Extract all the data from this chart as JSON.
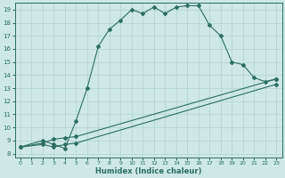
{
  "xlabel": "Humidex (Indice chaleur)",
  "xlim": [
    0,
    23
  ],
  "ylim": [
    8,
    19
  ],
  "xticks": [
    0,
    1,
    2,
    3,
    4,
    5,
    6,
    7,
    8,
    9,
    10,
    11,
    12,
    13,
    14,
    15,
    16,
    17,
    18,
    19,
    20,
    21,
    22,
    23
  ],
  "yticks": [
    8,
    9,
    10,
    11,
    12,
    13,
    14,
    15,
    16,
    17,
    18,
    19
  ],
  "bg_color": "#cde8e5",
  "line_color": "#2d6e63",
  "grid_color": "#afd4cf",
  "line1_x": [
    0,
    2,
    3,
    4,
    5,
    6,
    7,
    8,
    9,
    10,
    11,
    12,
    13,
    14,
    15,
    16,
    17,
    18,
    19,
    20,
    21,
    22,
    23
  ],
  "line1_y": [
    8.5,
    9.0,
    8.7,
    8.4,
    10.5,
    13.0,
    16.2,
    17.5,
    18.2,
    19.0,
    18.7,
    19.2,
    18.7,
    19.2,
    19.3,
    19.3,
    17.8,
    17.0,
    15.0,
    14.8,
    13.8,
    13.5,
    13.7
  ],
  "line2_x": [
    0,
    2,
    3,
    4,
    5,
    23
  ],
  "line2_y": [
    8.5,
    8.8,
    9.1,
    9.2,
    9.3,
    13.7
  ],
  "line3_x": [
    0,
    2,
    3,
    4,
    5,
    23
  ],
  "line3_y": [
    8.5,
    8.7,
    8.5,
    8.7,
    8.8,
    13.3
  ]
}
